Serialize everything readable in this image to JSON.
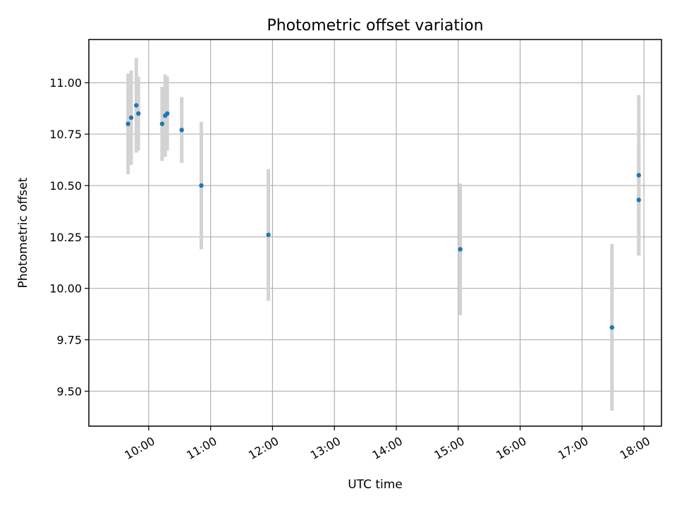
{
  "chart_data": {
    "type": "scatter",
    "title": "Photometric offset variation",
    "xlabel": "UTC time",
    "ylabel": "Photometric offset",
    "grid": true,
    "colors": {
      "points": "#1f77b4",
      "errorbars": "#d3d3d3"
    },
    "xlim": [
      "09:02",
      "18:17"
    ],
    "ylim": [
      9.33,
      11.21
    ],
    "xticks": [
      "10:00",
      "11:00",
      "12:00",
      "13:00",
      "14:00",
      "15:00",
      "16:00",
      "17:00",
      "18:00"
    ],
    "yticks": [
      9.5,
      9.75,
      10.0,
      10.25,
      10.5,
      10.75,
      11.0
    ],
    "ytick_labels": [
      "9.50",
      "9.75",
      "10.00",
      "10.25",
      "10.50",
      "10.75",
      "11.00"
    ],
    "points": [
      {
        "x": "09:40",
        "y": 10.8,
        "err": 0.245
      },
      {
        "x": "09:43",
        "y": 10.83,
        "err": 0.23
      },
      {
        "x": "09:48",
        "y": 10.89,
        "err": 0.23
      },
      {
        "x": "09:50",
        "y": 10.85,
        "err": 0.18
      },
      {
        "x": "10:13",
        "y": 10.8,
        "err": 0.18
      },
      {
        "x": "10:16",
        "y": 10.84,
        "err": 0.2
      },
      {
        "x": "10:18",
        "y": 10.85,
        "err": 0.18
      },
      {
        "x": "10:32",
        "y": 10.77,
        "err": 0.16
      },
      {
        "x": "10:51",
        "y": 10.5,
        "err": 0.31
      },
      {
        "x": "11:56",
        "y": 10.26,
        "err": 0.32
      },
      {
        "x": "15:02",
        "y": 10.19,
        "err": 0.32
      },
      {
        "x": "17:29",
        "y": 9.81,
        "err": 0.405
      },
      {
        "x": "17:55",
        "y": 10.55,
        "err": 0.39
      },
      {
        "x": "17:55",
        "y": 10.43,
        "err": 0.27
      }
    ]
  }
}
